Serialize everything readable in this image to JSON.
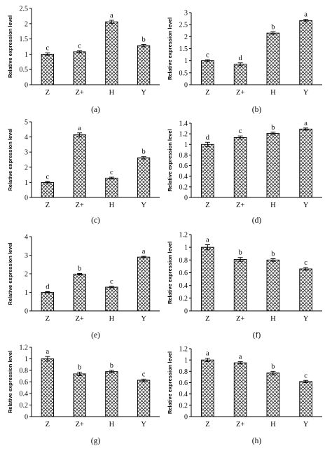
{
  "chart_data": [
    {
      "panel": "(a)",
      "type": "bar",
      "ylabel": "Relative expression level",
      "categories": [
        "Z",
        "Z+",
        "H",
        "Y"
      ],
      "values": [
        1.0,
        1.08,
        2.06,
        1.28
      ],
      "errors": [
        0.04,
        0.03,
        0.05,
        0.04
      ],
      "letters": [
        "c",
        "c",
        "a",
        "b"
      ],
      "ylim": [
        0,
        2.5
      ],
      "ticks": [
        "0",
        "0.5",
        "1",
        "1.5",
        "2",
        "2.5"
      ]
    },
    {
      "panel": "(b)",
      "type": "bar",
      "ylabel": "Relative expression level",
      "categories": [
        "Z",
        "Z+",
        "H",
        "Y"
      ],
      "values": [
        1.0,
        0.85,
        2.15,
        2.67
      ],
      "errors": [
        0.04,
        0.06,
        0.05,
        0.05
      ],
      "letters": [
        "c",
        "d",
        "b",
        "a"
      ],
      "ylim": [
        0,
        3
      ],
      "ticks": [
        "0",
        "0.5",
        "1",
        "1.5",
        "2",
        "2.5",
        "3"
      ]
    },
    {
      "panel": "(c)",
      "type": "bar",
      "ylabel": "Relative expression level",
      "categories": [
        "Z",
        "Z+",
        "H",
        "Y"
      ],
      "values": [
        1.0,
        4.15,
        1.28,
        2.62
      ],
      "errors": [
        0.05,
        0.12,
        0.06,
        0.08
      ],
      "letters": [
        "c",
        "a",
        "c",
        "b"
      ],
      "ylim": [
        0,
        5
      ],
      "ticks": [
        "0",
        "1",
        "2",
        "3",
        "4",
        "5"
      ]
    },
    {
      "panel": "(d)",
      "type": "bar",
      "ylabel": "Relative expression level",
      "categories": [
        "Z",
        "Z+",
        "H",
        "Y"
      ],
      "values": [
        1.0,
        1.13,
        1.21,
        1.29
      ],
      "errors": [
        0.04,
        0.03,
        0.02,
        0.02
      ],
      "letters": [
        "d",
        "c",
        "b",
        "a"
      ],
      "ylim": [
        0,
        1.4
      ],
      "ticks": [
        "0",
        "0.2",
        "0.4",
        "0.6",
        "0.8",
        "1",
        "1.2",
        "1.4"
      ]
    },
    {
      "panel": "(e)",
      "type": "bar",
      "ylabel": "Relative expression level",
      "categories": [
        "Z",
        "Z+",
        "H",
        "Y"
      ],
      "values": [
        1.0,
        1.98,
        1.28,
        2.9
      ],
      "errors": [
        0.04,
        0.04,
        0.04,
        0.04
      ],
      "letters": [
        "d",
        "b",
        "c",
        "a"
      ],
      "ylim": [
        0,
        4
      ],
      "ticks": [
        "0",
        "1",
        "2",
        "3",
        "4"
      ]
    },
    {
      "panel": "(f)",
      "type": "bar",
      "ylabel": "Relative expression level",
      "categories": [
        "Z",
        "Z+",
        "H",
        "Y"
      ],
      "values": [
        1.0,
        0.81,
        0.8,
        0.66
      ],
      "errors": [
        0.04,
        0.03,
        0.02,
        0.02
      ],
      "letters": [
        "a",
        "b",
        "b",
        "c"
      ],
      "ylim": [
        0,
        1.2
      ],
      "ticks": [
        "0",
        "0.2",
        "0.4",
        "0.6",
        "0.8",
        "1",
        "1.2"
      ]
    },
    {
      "panel": "(g)",
      "type": "bar",
      "ylabel": "Relative expression level",
      "categories": [
        "Z",
        "Z+",
        "H",
        "Y"
      ],
      "values": [
        1.0,
        0.74,
        0.78,
        0.63
      ],
      "errors": [
        0.04,
        0.03,
        0.02,
        0.02
      ],
      "letters": [
        "a",
        "b",
        "b",
        "c"
      ],
      "ylim": [
        0,
        1.2
      ],
      "ticks": [
        "0",
        "0.2",
        "0.4",
        "0.6",
        "0.8",
        "1",
        "1.2"
      ]
    },
    {
      "panel": "(h)",
      "type": "bar",
      "ylabel": "Relative expression level",
      "categories": [
        "Z",
        "Z+",
        "H",
        "Y"
      ],
      "values": [
        1.0,
        0.95,
        0.77,
        0.62
      ],
      "errors": [
        0.03,
        0.02,
        0.03,
        0.02
      ],
      "letters": [
        "a",
        "a",
        "b",
        "c"
      ],
      "ylim": [
        0,
        1.2
      ],
      "ticks": [
        "0",
        "0.2",
        "0.4",
        "0.6",
        "0.8",
        "1",
        "1.2"
      ]
    }
  ]
}
